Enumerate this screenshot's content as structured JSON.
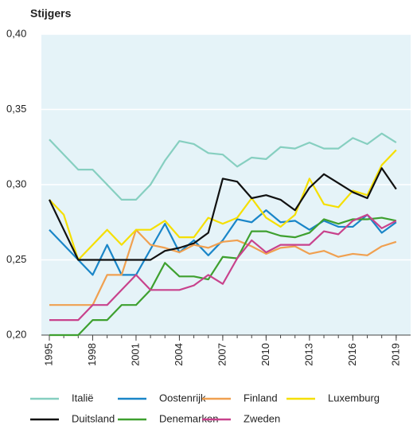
{
  "chart_data": {
    "type": "line",
    "title": "Stijgers",
    "x": [
      1995,
      1996,
      1997,
      1998,
      1999,
      2000,
      2001,
      2002,
      2003,
      2004,
      2005,
      2006,
      2007,
      2008,
      2009,
      2010,
      2011,
      2012,
      2013,
      2014,
      2015,
      2016,
      2017,
      2018,
      2019
    ],
    "xlim": [
      1994.45,
      2020
    ],
    "xticks": [
      1995,
      1998,
      2001,
      2004,
      2007,
      2010,
      2013,
      2016,
      2019
    ],
    "ylim": [
      0.2,
      0.4
    ],
    "yticks": [
      {
        "value": 0.2,
        "label": "0,20"
      },
      {
        "value": 0.25,
        "label": "0,25"
      },
      {
        "value": 0.3,
        "label": "0,30"
      },
      {
        "value": 0.35,
        "label": "0,35"
      },
      {
        "value": 0.4,
        "label": "0,40"
      }
    ],
    "grid": true,
    "series": [
      {
        "name": "Italië",
        "color": "#86cfc0",
        "values": [
          0.33,
          0.32,
          0.31,
          0.31,
          0.3,
          0.29,
          0.29,
          0.3,
          0.316,
          0.329,
          0.327,
          0.321,
          0.32,
          0.312,
          0.318,
          0.317,
          0.325,
          0.324,
          0.328,
          0.324,
          0.324,
          0.331,
          0.327,
          0.334,
          0.328
        ]
      },
      {
        "name": "Oostenrijk",
        "color": "#1a86c8",
        "values": [
          0.27,
          0.26,
          0.25,
          0.24,
          0.26,
          0.24,
          0.24,
          0.257,
          0.274,
          0.255,
          0.263,
          0.253,
          0.263,
          0.277,
          0.275,
          0.283,
          0.275,
          0.276,
          0.27,
          0.276,
          0.272,
          0.272,
          0.28,
          0.268,
          0.275
        ]
      },
      {
        "name": "Finland",
        "color": "#f0a050",
        "values": [
          0.22,
          0.22,
          0.22,
          0.22,
          0.24,
          0.24,
          0.27,
          0.26,
          0.258,
          0.255,
          0.26,
          0.258,
          0.262,
          0.263,
          0.259,
          0.254,
          0.258,
          0.259,
          0.254,
          0.256,
          0.252,
          0.254,
          0.253,
          0.259,
          0.262
        ]
      },
      {
        "name": "Luxemburg",
        "color": "#f5df00",
        "values": [
          0.29,
          0.28,
          0.25,
          0.26,
          0.27,
          0.26,
          0.27,
          0.27,
          0.276,
          0.265,
          0.265,
          0.278,
          0.274,
          0.278,
          0.291,
          0.278,
          0.272,
          0.28,
          0.304,
          0.287,
          0.285,
          0.296,
          0.293,
          0.313,
          0.323
        ]
      },
      {
        "name": "Duitsland",
        "color": "#111111",
        "values": [
          0.29,
          0.27,
          0.25,
          0.25,
          0.25,
          0.25,
          0.25,
          0.25,
          0.256,
          0.258,
          0.261,
          0.268,
          0.304,
          0.302,
          0.291,
          0.293,
          0.29,
          0.283,
          0.298,
          0.307,
          0.301,
          0.295,
          0.291,
          0.311,
          0.297
        ]
      },
      {
        "name": "Denemarken",
        "color": "#3ea02f",
        "values": [
          0.2,
          0.2,
          0.2,
          0.21,
          0.21,
          0.22,
          0.22,
          0.23,
          0.248,
          0.239,
          0.239,
          0.237,
          0.252,
          0.251,
          0.269,
          0.269,
          0.266,
          0.265,
          0.268,
          0.277,
          0.274,
          0.277,
          0.277,
          0.278,
          0.276
        ]
      },
      {
        "name": "Zweden",
        "color": "#c8428c",
        "values": [
          0.21,
          0.21,
          0.21,
          0.22,
          0.22,
          0.23,
          0.24,
          0.23,
          0.23,
          0.23,
          0.233,
          0.24,
          0.234,
          0.251,
          0.263,
          0.255,
          0.26,
          0.26,
          0.26,
          0.269,
          0.267,
          0.276,
          0.28,
          0.271,
          0.276
        ]
      }
    ]
  }
}
